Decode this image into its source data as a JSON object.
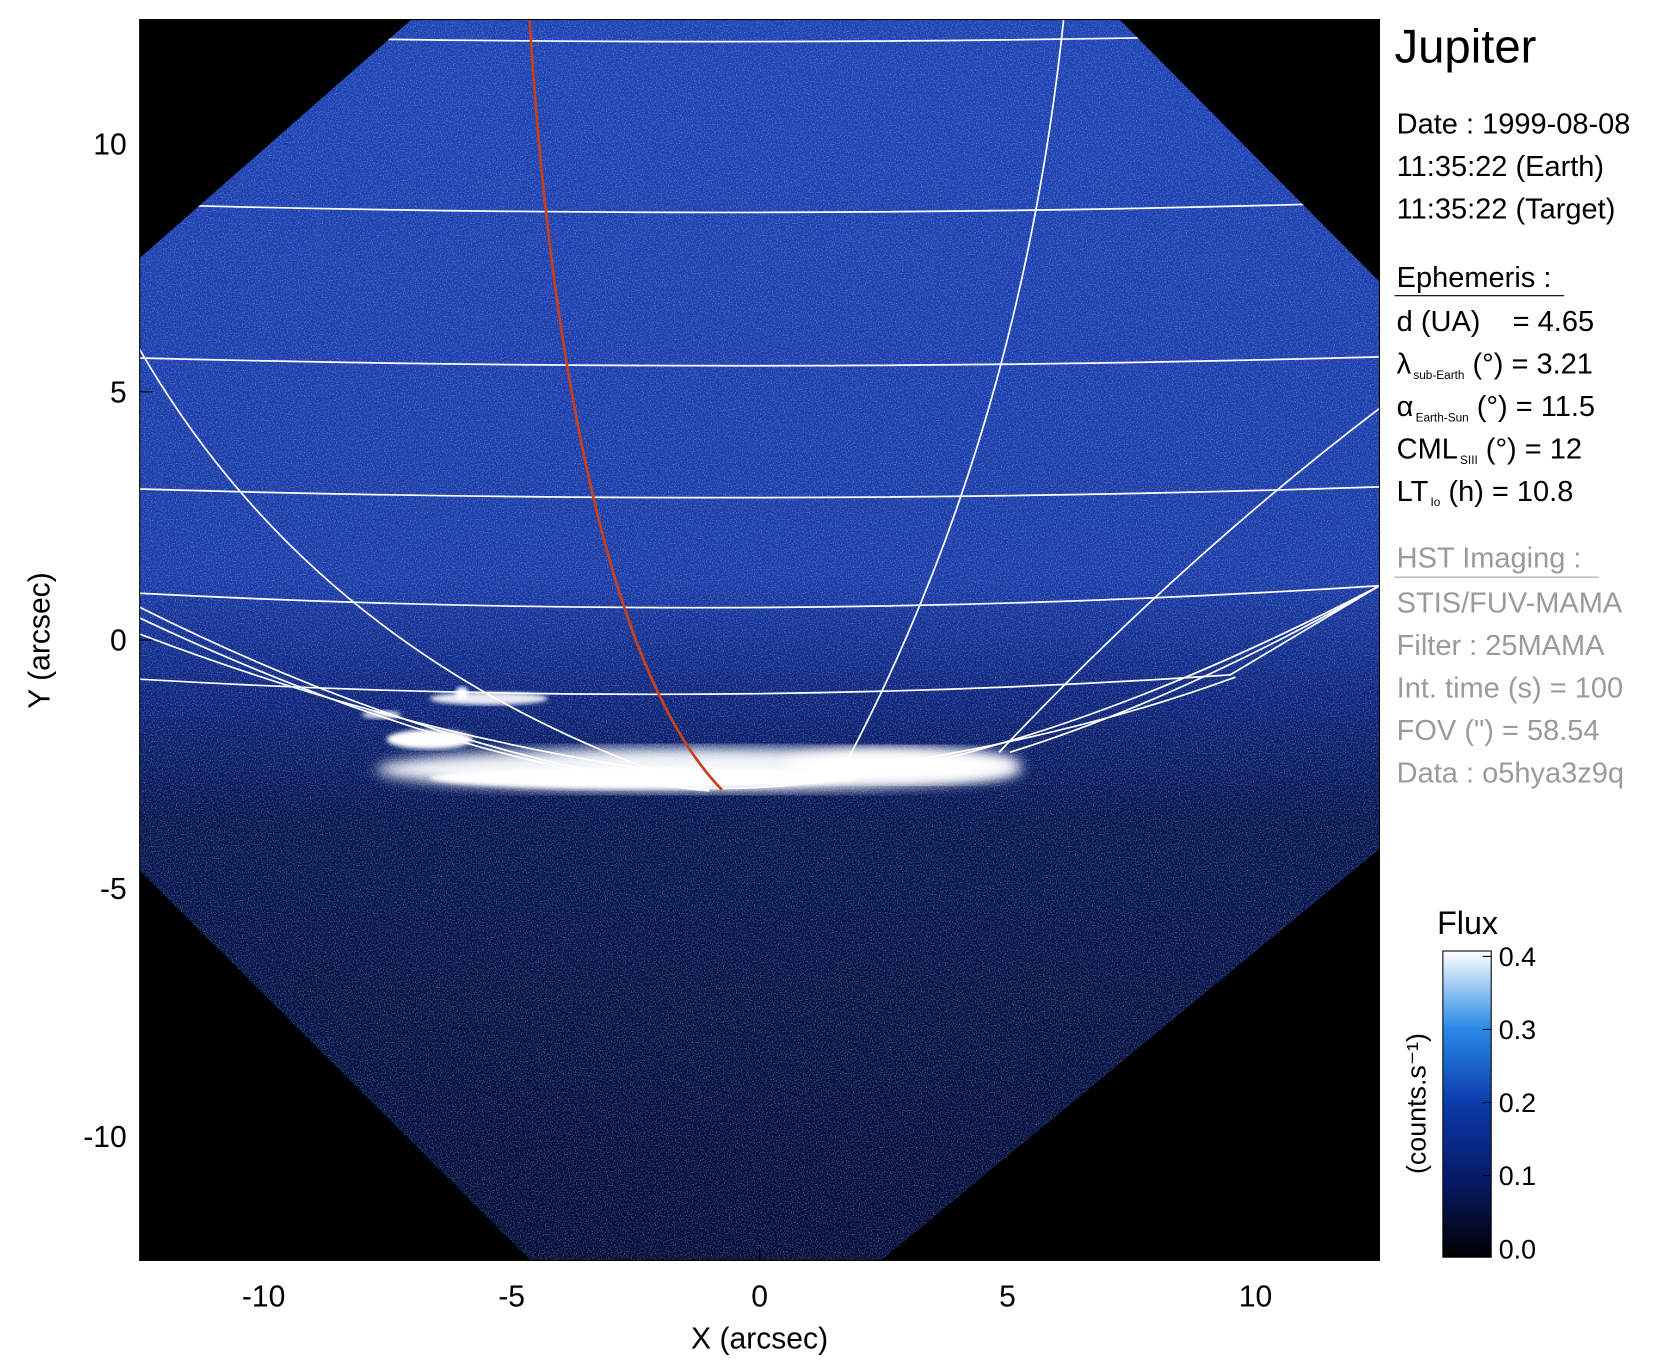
{
  "chart_data": {
    "type": "image",
    "title": "Jupiter",
    "xlabel": "X (arcsec)",
    "ylabel": "Y (arcsec)",
    "xlim": [
      -12.5,
      12.5
    ],
    "ylim": [
      -12.5,
      12.5
    ],
    "xticks": [
      -10,
      -5,
      0,
      5,
      10
    ],
    "yticks": [
      -10,
      -5,
      0,
      5,
      10
    ],
    "colorbar": {
      "title": "Flux",
      "label": "(counts.s⁻¹)",
      "lim": [
        0,
        0.4
      ],
      "ticks": [
        {
          "value": 0,
          "label": "0.0"
        },
        0.1,
        0.2,
        0.3,
        0.4
      ]
    },
    "info": {
      "date": [
        "Date : 1999-08-08",
        "11:35:22 (Earth)",
        "11:35:22 (Target)"
      ],
      "ephemeris_title": "Ephemeris :",
      "ephemeris": [
        {
          "label": "d (UA)    = 4.65"
        },
        {
          "label": "λ",
          "sub": "sub-Earth",
          "text": " (°) = 3.21"
        },
        {
          "label": "α",
          "sub": "Earth-Sun",
          "text": " (°) = 11.5"
        },
        {
          "label": "CML",
          "sub": "SIII",
          "text": " (°) = 12"
        },
        {
          "label": "LT",
          "sub": "Io",
          "text": " (h) = 10.8"
        }
      ],
      "hst_title": "HST Imaging :",
      "hst": [
        "STIS/FUV-MAMA",
        "Filter : 25MAMA",
        "Int. time (s) = 100",
        "FOV (\") = 58.54",
        "Data : o5hya3z9q"
      ]
    }
  }
}
